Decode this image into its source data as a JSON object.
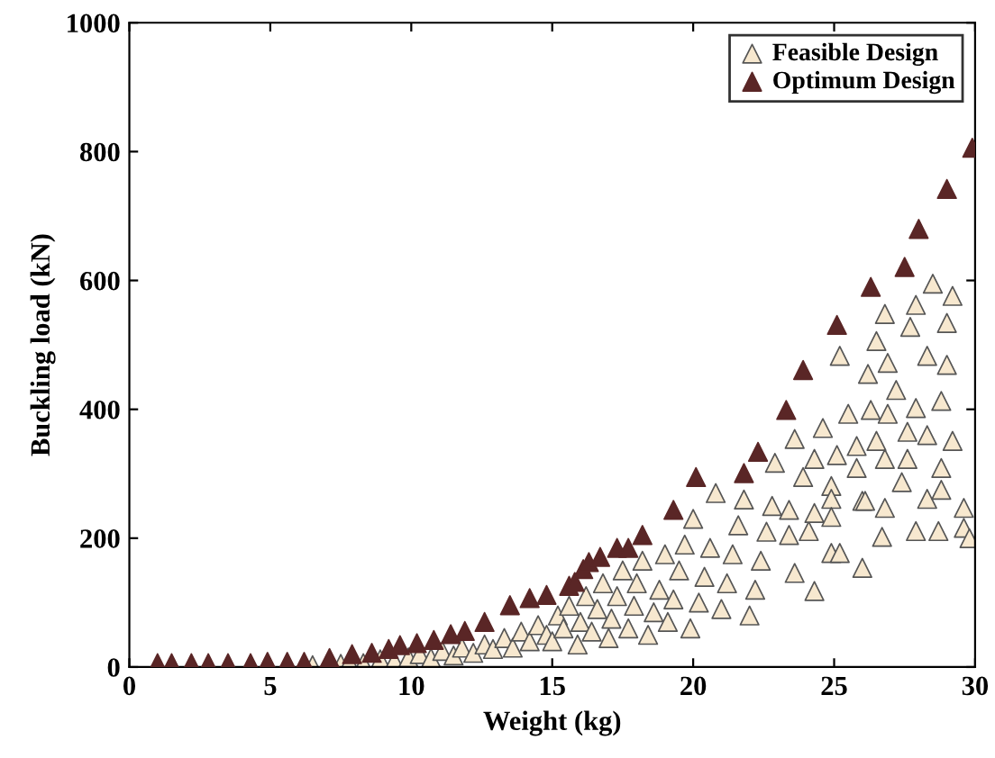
{
  "chart_data": {
    "type": "scatter",
    "xlabel": "Weight (kg)",
    "ylabel": "Buckling load (kN)",
    "xlim": [
      0,
      30
    ],
    "ylim": [
      0,
      1000
    ],
    "xticks": [
      0,
      5,
      10,
      15,
      20,
      25,
      30
    ],
    "yticks": [
      0,
      200,
      400,
      600,
      800,
      1000
    ],
    "grid": false,
    "legend": "top right",
    "marker": "triangle",
    "series": [
      {
        "name": "Feasible Design",
        "color": "#f7e8cf",
        "x": [
          6.5,
          7.5,
          7.8,
          8.3,
          8.9,
          9.4,
          9.9,
          10.3,
          10.7,
          11.1,
          11.5,
          11.8,
          12.2,
          12.6,
          12.9,
          13.3,
          13.6,
          13.9,
          14.2,
          14.5,
          14.8,
          15.0,
          15.2,
          15.4,
          15.6,
          15.9,
          16.0,
          16.2,
          16.4,
          16.6,
          16.8,
          17.0,
          17.1,
          17.3,
          17.5,
          17.7,
          17.9,
          18.0,
          18.2,
          18.4,
          18.6,
          18.8,
          19.0,
          19.1,
          19.3,
          19.5,
          19.7,
          19.9,
          20.0,
          20.2,
          20.4,
          20.6,
          20.8,
          21.0,
          21.2,
          21.4,
          21.6,
          21.8,
          22.0,
          22.2,
          22.4,
          22.6,
          22.8,
          22.9,
          23.4,
          23.4,
          23.6,
          23.6,
          23.9,
          24.1,
          24.3,
          24.3,
          24.3,
          24.6,
          24.9,
          24.9,
          24.9,
          24.9,
          25.1,
          25.2,
          25.2,
          25.5,
          25.8,
          25.8,
          26.0,
          26.0,
          26.1,
          26.2,
          26.3,
          26.5,
          26.5,
          26.7,
          26.8,
          26.8,
          26.8,
          26.9,
          26.9,
          27.2,
          27.4,
          27.6,
          27.6,
          27.7,
          27.9,
          27.9,
          27.9,
          28.3,
          28.3,
          28.3,
          28.5,
          28.7,
          28.8,
          28.8,
          28.8,
          29.0,
          29.0,
          29.2,
          29.2,
          29.6,
          29.6,
          29.8
        ],
        "values": [
          3,
          5,
          8,
          6,
          12,
          10,
          15,
          20,
          14,
          25,
          18,
          30,
          22,
          35,
          28,
          45,
          30,
          55,
          40,
          65,
          50,
          40,
          80,
          60,
          95,
          35,
          70,
          110,
          55,
          90,
          130,
          45,
          75,
          110,
          150,
          60,
          95,
          130,
          165,
          50,
          85,
          120,
          175,
          70,
          105,
          150,
          190,
          60,
          230,
          100,
          140,
          185,
          270,
          90,
          130,
          175,
          220,
          260,
          80,
          120,
          165,
          210,
          250,
          317,
          244,
          205,
          354,
          146,
          295,
          211,
          323,
          239,
          118,
          371,
          281,
          261,
          233,
          177,
          329,
          483,
          177,
          393,
          343,
          309,
          258,
          154,
          258,
          455,
          399,
          506,
          351,
          202,
          548,
          323,
          247,
          472,
          393,
          430,
          287,
          365,
          323,
          528,
          562,
          402,
          211,
          483,
          360,
          261,
          595,
          211,
          413,
          309,
          275,
          534,
          469,
          576,
          351,
          247,
          216,
          200
        ]
      },
      {
        "name": "Optimum Design",
        "color": "#5a2626",
        "x": [
          1.0,
          1.5,
          2.2,
          2.8,
          3.5,
          4.3,
          4.9,
          5.6,
          6.2,
          7.1,
          7.9,
          8.6,
          9.2,
          9.6,
          10.2,
          10.8,
          11.4,
          11.9,
          12.6,
          13.5,
          14.2,
          14.8,
          15.6,
          15.8,
          16.1,
          16.3,
          16.7,
          17.3,
          17.7,
          18.2,
          19.3,
          20.1,
          21.8,
          22.3,
          23.3,
          23.9,
          25.1,
          26.3,
          27.5,
          28.0,
          29.0,
          29.9
        ],
        "values": [
          6,
          6,
          6,
          6,
          6,
          6,
          8,
          8,
          8,
          14,
          20,
          22,
          28,
          34,
          37,
          42,
          51,
          56,
          70,
          96,
          107,
          112,
          126,
          132,
          152,
          163,
          171,
          185,
          185,
          205,
          244,
          295,
          301,
          334,
          399,
          461,
          531,
          590,
          621,
          680,
          742,
          806
        ]
      }
    ]
  }
}
